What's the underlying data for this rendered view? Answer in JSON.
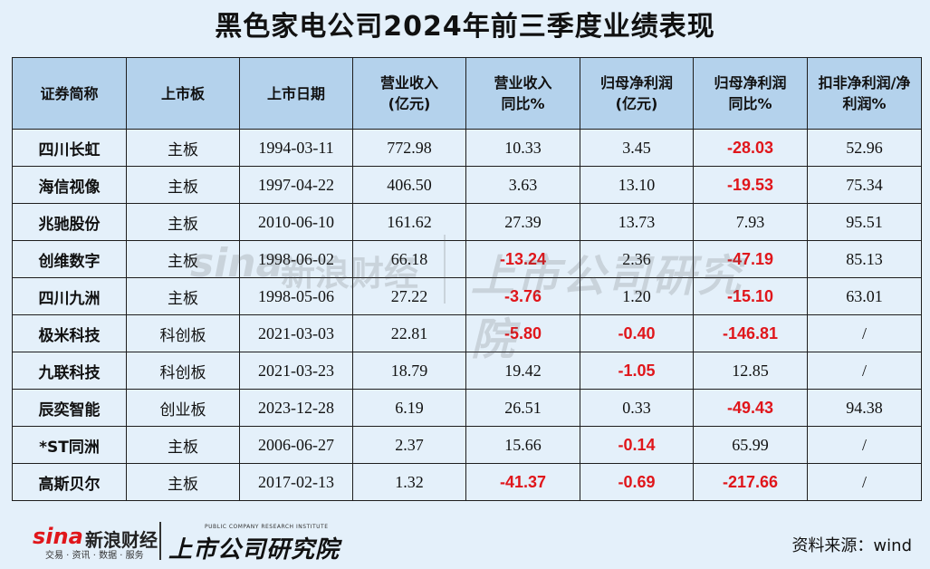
{
  "title": "黑色家电公司2024年前三季度业绩表现",
  "headers": {
    "name": "证券简称",
    "board": "上市板",
    "date": "上市日期",
    "rev": [
      "营业收入",
      "(亿元)"
    ],
    "rev_yoy": [
      "营业收入",
      "同比%"
    ],
    "np": [
      "归母净利润",
      "(亿元)"
    ],
    "np_yoy": [
      "归母净利润",
      "同比%"
    ],
    "ratio": [
      "扣非净利润/净",
      "利润%"
    ]
  },
  "rows": [
    {
      "name": "四川长虹",
      "board": "主板",
      "date": "1994-03-11",
      "rev": "772.98",
      "rev_yoy": "10.33",
      "np": "3.45",
      "np_yoy": "-28.03",
      "ratio": "52.96"
    },
    {
      "name": "海信视像",
      "board": "主板",
      "date": "1997-04-22",
      "rev": "406.50",
      "rev_yoy": "3.63",
      "np": "13.10",
      "np_yoy": "-19.53",
      "ratio": "75.34"
    },
    {
      "name": "兆驰股份",
      "board": "主板",
      "date": "2010-06-10",
      "rev": "161.62",
      "rev_yoy": "27.39",
      "np": "13.73",
      "np_yoy": "7.93",
      "ratio": "95.51"
    },
    {
      "name": "创维数字",
      "board": "主板",
      "date": "1998-06-02",
      "rev": "66.18",
      "rev_yoy": "-13.24",
      "np": "2.36",
      "np_yoy": "-47.19",
      "ratio": "85.13"
    },
    {
      "name": "四川九洲",
      "board": "主板",
      "date": "1998-05-06",
      "rev": "27.22",
      "rev_yoy": "-3.76",
      "np": "1.20",
      "np_yoy": "-15.10",
      "ratio": "63.01"
    },
    {
      "name": "极米科技",
      "board": "科创板",
      "date": "2021-03-03",
      "rev": "22.81",
      "rev_yoy": "-5.80",
      "np": "-0.40",
      "np_yoy": "-146.81",
      "ratio": "/"
    },
    {
      "name": "九联科技",
      "board": "科创板",
      "date": "2021-03-23",
      "rev": "18.79",
      "rev_yoy": "19.42",
      "np": "-1.05",
      "np_yoy": "12.85",
      "ratio": "/"
    },
    {
      "name": "辰奕智能",
      "board": "创业板",
      "date": "2023-12-28",
      "rev": "6.19",
      "rev_yoy": "26.51",
      "np": "0.33",
      "np_yoy": "-49.43",
      "ratio": "94.38"
    },
    {
      "name": "*ST同洲",
      "board": "主板",
      "date": "2006-06-27",
      "rev": "2.37",
      "rev_yoy": "15.66",
      "np": "-0.14",
      "np_yoy": "65.99",
      "ratio": "/"
    },
    {
      "name": "高斯贝尔",
      "board": "主板",
      "date": "2017-02-13",
      "rev": "1.32",
      "rev_yoy": "-41.37",
      "np": "-0.69",
      "np_yoy": "-217.66",
      "ratio": "/"
    }
  ],
  "negative_color": "#e0161b",
  "header_bg": "#b4d2ec",
  "page_bg": "#e4f0fa",
  "watermark": {
    "sina": "sina",
    "sina_cn": "新浪财经",
    "institute": "上市公司研究院"
  },
  "footer": {
    "sina": "sina",
    "sina_cn": "新浪财经",
    "sina_sub": "交易 · 资讯 · 数据 · 服务",
    "institute_en": "PUBLIC COMPANY RESEARCH INSTITUTE",
    "institute_cn": "上市公司研究院",
    "source": "资料来源：wind"
  }
}
